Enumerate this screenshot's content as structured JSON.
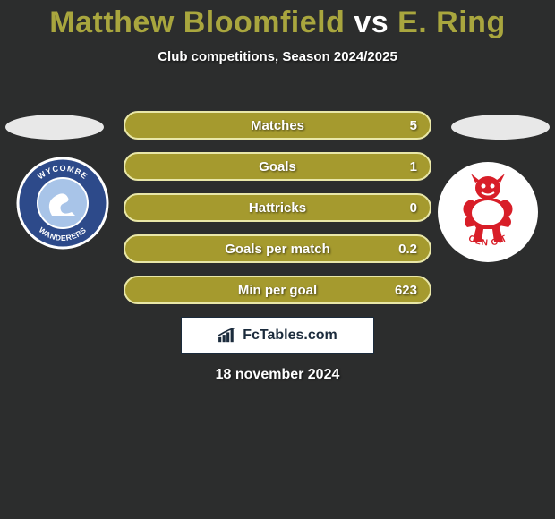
{
  "title": {
    "player1": "Matthew Bloomfield",
    "vs": "vs",
    "player2": "E. Ring",
    "color1": "#a9a63e",
    "color_vs": "#ffffff",
    "color2": "#a9a63e"
  },
  "subtitle": "Club competitions, Season 2024/2025",
  "stats": [
    {
      "label": "Matches",
      "value": "5",
      "bar_color": "#a59a2e",
      "border_color": "#e9e7a8"
    },
    {
      "label": "Goals",
      "value": "1",
      "bar_color": "#a59a2e",
      "border_color": "#e9e7a8"
    },
    {
      "label": "Hattricks",
      "value": "0",
      "bar_color": "#a59a2e",
      "border_color": "#e9e7a8"
    },
    {
      "label": "Goals per match",
      "value": "0.2",
      "bar_color": "#a59a2e",
      "border_color": "#e9e7a8"
    },
    {
      "label": "Min per goal",
      "value": "623",
      "bar_color": "#a59a2e",
      "border_color": "#e9e7a8"
    }
  ],
  "ellipse_color": "#e2e2e2",
  "club_left": {
    "outer_bg": "#2d4a8a",
    "outer_ring": "#ffffff",
    "inner_bg": "#a8c4e8",
    "text_top": "WYCOMBE",
    "text_bottom": "WANDERERS",
    "text_color": "#ffffff"
  },
  "club_right": {
    "bg": "#ffffff",
    "figure_color": "#d81e28",
    "text_bottom": "OLN CIT",
    "text_color": "#d81e28"
  },
  "brand": {
    "text": "FcTables.com",
    "box_bg": "#ffffff",
    "box_border": "#1b2b3c",
    "icon_color": "#1b2b3c"
  },
  "date": "18 november 2024",
  "background_color": "#2c2d2d"
}
